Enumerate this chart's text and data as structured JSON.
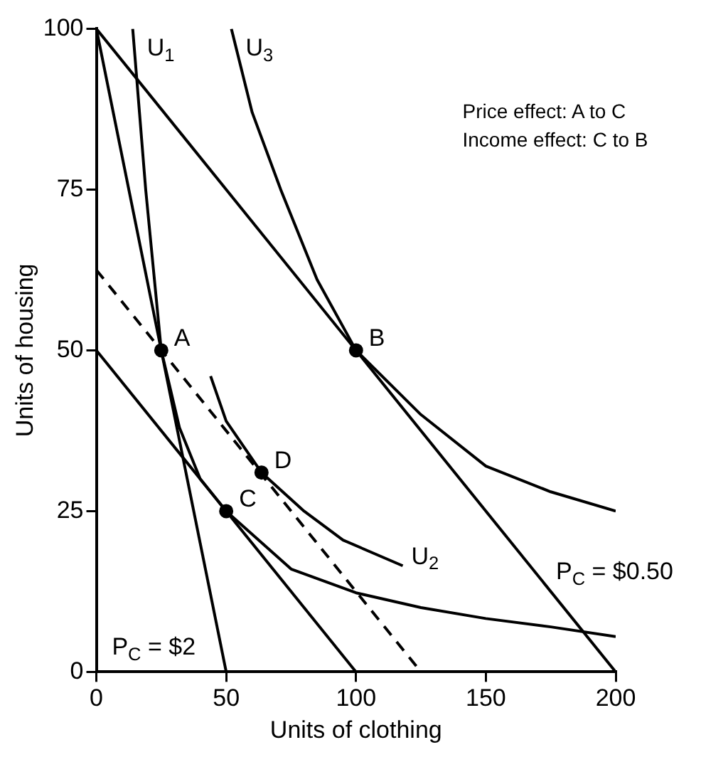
{
  "chart_data": {
    "type": "line",
    "xlabel": "Units of clothing",
    "ylabel": "Units of housing",
    "xlim": [
      0,
      200
    ],
    "xticks": [
      0,
      50,
      100,
      150,
      200
    ],
    "ylim": [
      0,
      100
    ],
    "yticks": [
      0,
      25,
      50,
      75,
      100
    ],
    "grid": false,
    "legend": false,
    "marker": "none",
    "series": [
      {
        "color": "#000000",
        "x": [
          0,
          50
        ],
        "values": [
          100,
          0
        ]
      },
      {
        "color": "#000000",
        "x": [
          0,
          200
        ],
        "values": [
          100,
          0
        ]
      },
      {
        "color": "#000000",
        "x": [
          0,
          100
        ],
        "values": [
          50,
          0
        ]
      },
      {
        "color": "#000000",
        "x": [
          0,
          125
        ],
        "values": [
          62.5,
          0
        ],
        "line_style": "dashed"
      },
      {
        "name": "U$_{1}$",
        "color": "#000000",
        "x": [
          14,
          19,
          25,
          32,
          40,
          50,
          75,
          100,
          125,
          150,
          175,
          200
        ],
        "values": [
          100,
          75,
          50,
          38,
          30,
          25,
          16,
          12.3,
          10,
          8.3,
          7,
          5.5
        ]
      },
      {
        "name": "U$_{2}$",
        "color": "#000000",
        "x": [
          44,
          50,
          63.6,
          80,
          95,
          118
        ],
        "values": [
          46,
          39,
          31,
          25,
          20.5,
          16.5
        ]
      },
      {
        "name": "U$_{3}$",
        "color": "#000000",
        "x": [
          52,
          60,
          71,
          85,
          100,
          125,
          150,
          175,
          200
        ],
        "values": [
          100,
          87,
          75,
          61,
          50,
          40,
          32,
          28,
          25
        ]
      },
      {
        "name": "A",
        "type": "scatter",
        "marker": "circle",
        "color": "#000000",
        "x": [
          25
        ],
        "values": [
          50
        ]
      },
      {
        "name": "B",
        "type": "scatter",
        "marker": "circle",
        "color": "#000000",
        "x": [
          100
        ],
        "values": [
          50
        ]
      },
      {
        "name": "C",
        "type": "scatter",
        "marker": "circle",
        "color": "#000000",
        "x": [
          50
        ],
        "values": [
          25
        ]
      },
      {
        "name": "D",
        "type": "scatter",
        "marker": "circle",
        "color": "#000000",
        "x": [
          63.6
        ],
        "values": [
          31
        ]
      }
    ],
    "annotations": [
      "P$_{C}$ = $0.50",
      "P$_{C}$ = $2",
      "Price effect: A to C",
      "Income effect: C to B"
    ]
  }
}
